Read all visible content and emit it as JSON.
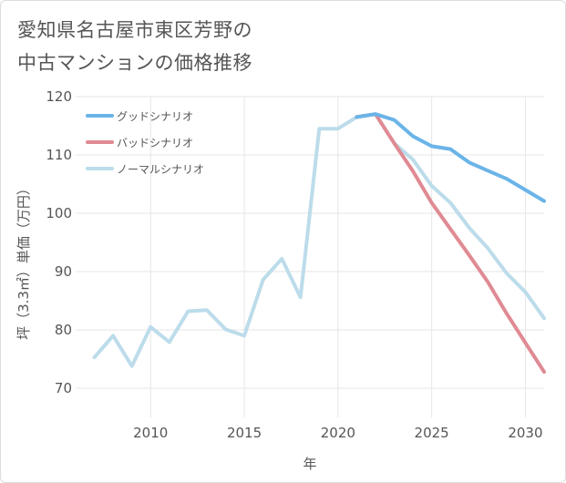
{
  "title": {
    "line1": "愛知県名古屋市東区芳野の",
    "line2": "中古マンションの価格推移"
  },
  "chart_data": {
    "type": "line",
    "title": "愛知県名古屋市東区芳野の中古マンションの価格推移",
    "xlabel": "年",
    "ylabel": "坪（3.3㎡）単価（万円）",
    "xlim": [
      2006,
      2031
    ],
    "ylim": [
      65,
      120
    ],
    "x_ticks": [
      2010,
      2015,
      2020,
      2025,
      2030
    ],
    "y_ticks": [
      70,
      80,
      90,
      100,
      110,
      120
    ],
    "grid": true,
    "legend_position": "top-left",
    "series": [
      {
        "name": "グッドシナリオ",
        "color": "#6ab4e8",
        "x": [
          2021,
          2022,
          2023,
          2024,
          2025,
          2026,
          2027,
          2028,
          2029,
          2030,
          2031
        ],
        "values": [
          116.5,
          117.0,
          116.0,
          113.2,
          111.5,
          111.0,
          108.7,
          107.3,
          105.9,
          104.0,
          102.1
        ]
      },
      {
        "name": "バッドシナリオ",
        "color": "#e08a93",
        "x": [
          2021,
          2022,
          2023,
          2024,
          2025,
          2026,
          2027,
          2028,
          2029,
          2030,
          2031
        ],
        "values": [
          116.5,
          117.0,
          112.0,
          107.2,
          101.8,
          97.3,
          92.8,
          88.2,
          82.8,
          77.8,
          72.8
        ]
      },
      {
        "name": "ノーマルシナリオ",
        "color": "#bcdcea",
        "x": [
          2007,
          2008,
          2009,
          2010,
          2011,
          2012,
          2013,
          2014,
          2015,
          2016,
          2017,
          2018,
          2019,
          2020,
          2021,
          2022,
          2023,
          2024,
          2025,
          2026,
          2027,
          2028,
          2029,
          2030,
          2031
        ],
        "values": [
          75.3,
          79.0,
          73.8,
          80.5,
          77.9,
          83.2,
          83.4,
          80.1,
          79.0,
          88.6,
          92.2,
          85.6,
          114.5,
          114.5,
          116.5,
          117.0,
          112.0,
          109.2,
          104.7,
          101.8,
          97.5,
          94.0,
          89.7,
          86.5,
          82.0
        ]
      }
    ]
  }
}
